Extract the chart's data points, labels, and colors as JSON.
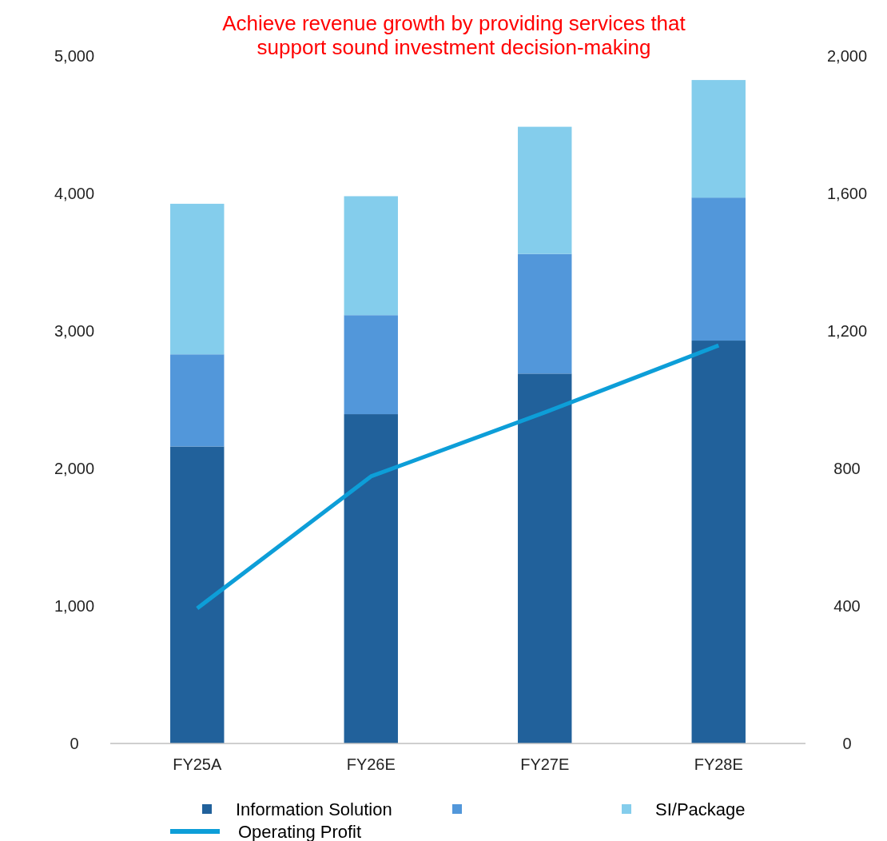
{
  "chart_data": {
    "type": "bar",
    "title": "Achieve revenue growth by providing services that\nsupport sound investment decision-making",
    "categories": [
      "FY25A",
      "FY26E",
      "FY27E",
      "FY28E"
    ],
    "stacked": true,
    "series": [
      {
        "name": "Information Solution",
        "color": "#21619b",
        "values": [
          2160,
          2395,
          2690,
          2930
        ]
      },
      {
        "color": "#5297da",
        "values": [
          670,
          720,
          870,
          1040
        ]
      },
      {
        "name": "SI/Package",
        "color": "#84cdec",
        "values": [
          1095,
          865,
          925,
          855
        ]
      },
      {
        "name": "Operating Profit",
        "type": "line",
        "axis": "y2",
        "color": "#0d9ed8",
        "values": [
          393,
          777,
          963,
          1158
        ]
      }
    ],
    "ylim": [
      0,
      5000
    ],
    "yticks": [
      {
        "value": 0,
        "label": "0"
      },
      {
        "value": 1000,
        "label": "1,000"
      },
      {
        "value": 2000,
        "label": "2,000"
      },
      {
        "value": 3000,
        "label": "3,000"
      },
      {
        "value": 4000,
        "label": "4,000"
      },
      {
        "value": 5000,
        "label": "5,000"
      }
    ],
    "y2lim": [
      0,
      2000
    ],
    "y2ticks": [
      0,
      400,
      800,
      {
        "value": 1200,
        "label": "1,200"
      },
      {
        "value": 1600,
        "label": "1,600"
      },
      {
        "value": 2000,
        "label": "2,000"
      }
    ],
    "legend": "bottom",
    "grid": false
  }
}
